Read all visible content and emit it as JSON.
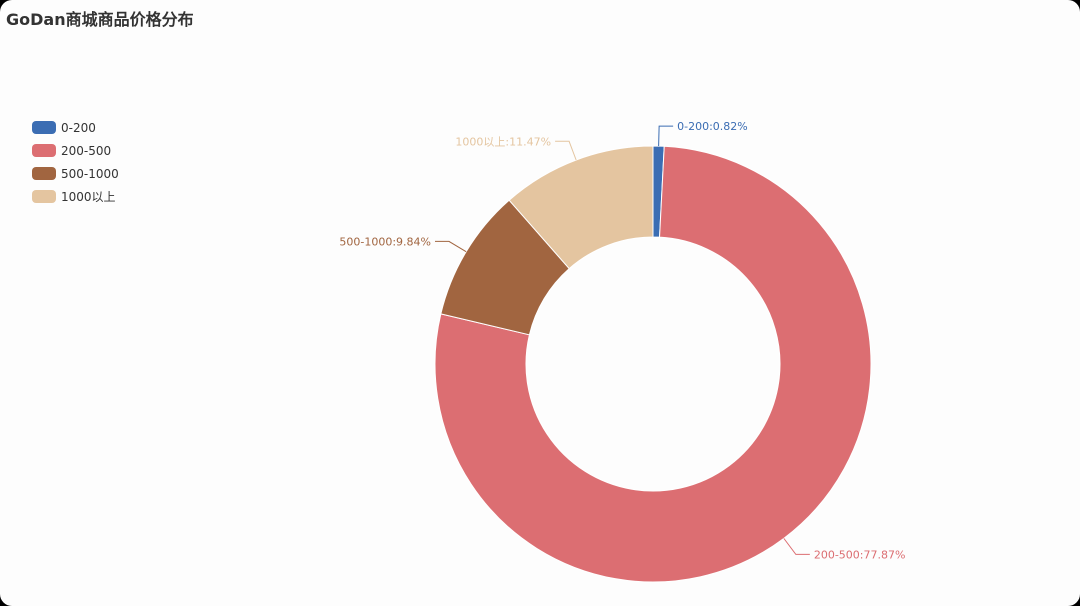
{
  "chart_data": {
    "type": "pie",
    "title": "GoDan商城商品价格分布",
    "categories": [
      "0-200",
      "200-500",
      "500-1000",
      "1000以上"
    ],
    "values": [
      0.82,
      77.87,
      9.84,
      11.47
    ],
    "unit": "%",
    "colors": [
      "#3b6db3",
      "#dc6e72",
      "#a16540",
      "#e4c5a0"
    ],
    "labels": [
      "0-200:0.82%",
      "200-500:77.87%",
      "500-1000:9.84%",
      "1000以上:11.47%"
    ],
    "legend_position": "left",
    "style": "donut"
  }
}
